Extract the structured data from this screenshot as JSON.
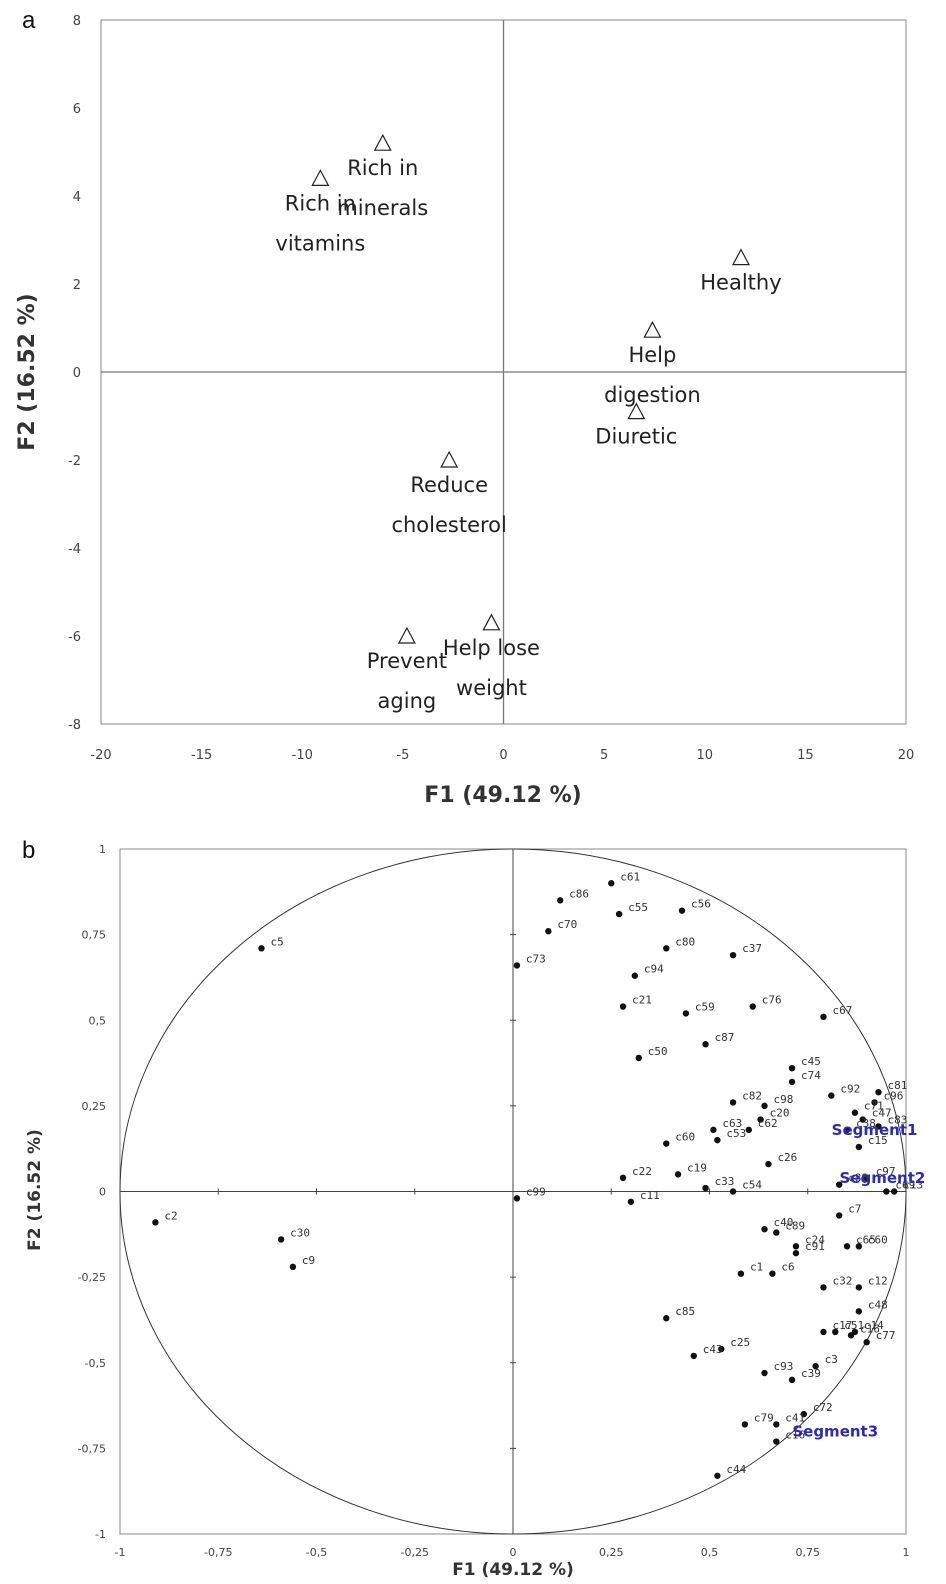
{
  "chart_data": [
    {
      "type": "scatter",
      "panel_label": "a",
      "xlabel": "F1 (49.12 %)",
      "ylabel": "F2 (16.52 %)",
      "xlim": [
        -20,
        20
      ],
      "ylim": [
        -8,
        8
      ],
      "xticks": [
        "-20",
        "-15",
        "-10",
        "-5",
        "0",
        "5",
        "10",
        "15",
        "20"
      ],
      "yticks": [
        "8",
        "6",
        "4",
        "2",
        "0",
        "-2",
        "-4",
        "-6",
        "-8"
      ],
      "marker": "open-triangle",
      "points": [
        {
          "label": [
            "Rich in",
            "vitamins"
          ],
          "x": -9.1,
          "y": 4.4
        },
        {
          "label": [
            "Rich in",
            "minerals"
          ],
          "x": -6.0,
          "y": 5.2
        },
        {
          "label": [
            "Healthy"
          ],
          "x": 11.8,
          "y": 2.6
        },
        {
          "label": [
            "Help",
            "digestion"
          ],
          "x": 7.4,
          "y": 0.95
        },
        {
          "label": [
            "Diuretic"
          ],
          "x": 6.6,
          "y": -0.9
        },
        {
          "label": [
            "Reduce",
            "cholesterol"
          ],
          "x": -2.7,
          "y": -2.0
        },
        {
          "label": [
            "Prevent",
            "aging"
          ],
          "x": -4.8,
          "y": -6.0
        },
        {
          "label": [
            "Help lose",
            "weight"
          ],
          "x": -0.6,
          "y": -5.7
        }
      ]
    },
    {
      "type": "scatter",
      "panel_label": "b",
      "xlabel": "F1 (49.12 %)",
      "ylabel": "F2 (16.52 %)",
      "xlim": [
        -1,
        1
      ],
      "ylim": [
        -1,
        1
      ],
      "xticks": [
        "-1",
        "-0,75",
        "-0,5",
        "-0,25",
        "0",
        "0,25",
        "0,5",
        "0,75",
        "1"
      ],
      "yticks": [
        "1",
        "0,75",
        "0,5",
        "0,25",
        "0",
        "-0,25",
        "-0,5",
        "-0,75",
        "-1"
      ],
      "correlation_circle": true,
      "marker": "filled-circle",
      "points": [
        {
          "label": "c61",
          "x": 0.25,
          "y": 0.9
        },
        {
          "label": "c86",
          "x": 0.12,
          "y": 0.85
        },
        {
          "label": "c55",
          "x": 0.27,
          "y": 0.81
        },
        {
          "label": "c56",
          "x": 0.43,
          "y": 0.82
        },
        {
          "label": "c70",
          "x": 0.09,
          "y": 0.76
        },
        {
          "label": "c5",
          "x": -0.64,
          "y": 0.71
        },
        {
          "label": "c73",
          "x": 0.01,
          "y": 0.66
        },
        {
          "label": "c80",
          "x": 0.39,
          "y": 0.71
        },
        {
          "label": "c37",
          "x": 0.56,
          "y": 0.69
        },
        {
          "label": "c94",
          "x": 0.31,
          "y": 0.63
        },
        {
          "label": "c21",
          "x": 0.28,
          "y": 0.54
        },
        {
          "label": "c59",
          "x": 0.44,
          "y": 0.52
        },
        {
          "label": "c76",
          "x": 0.61,
          "y": 0.54
        },
        {
          "label": "c67",
          "x": 0.79,
          "y": 0.51
        },
        {
          "label": "c87",
          "x": 0.49,
          "y": 0.43
        },
        {
          "label": "c50",
          "x": 0.32,
          "y": 0.39
        },
        {
          "label": "c45",
          "x": 0.71,
          "y": 0.36
        },
        {
          "label": "c74",
          "x": 0.71,
          "y": 0.32
        },
        {
          "label": "c82",
          "x": 0.56,
          "y": 0.26
        },
        {
          "label": "c98",
          "x": 0.64,
          "y": 0.25
        },
        {
          "label": "c20",
          "x": 0.63,
          "y": 0.21
        },
        {
          "label": "c62",
          "x": 0.6,
          "y": 0.18
        },
        {
          "label": "c63",
          "x": 0.51,
          "y": 0.18
        },
        {
          "label": "c53",
          "x": 0.52,
          "y": 0.15
        },
        {
          "label": "c60",
          "x": 0.39,
          "y": 0.14
        },
        {
          "label": "c26",
          "x": 0.65,
          "y": 0.08
        },
        {
          "label": "c22",
          "x": 0.28,
          "y": 0.04
        },
        {
          "label": "c19",
          "x": 0.42,
          "y": 0.05
        },
        {
          "label": "c33",
          "x": 0.49,
          "y": 0.01
        },
        {
          "label": "c54",
          "x": 0.56,
          "y": 0.0
        },
        {
          "label": "c92",
          "x": 0.81,
          "y": 0.28
        },
        {
          "label": "c81",
          "x": 0.93,
          "y": 0.29
        },
        {
          "label": "c96",
          "x": 0.92,
          "y": 0.26
        },
        {
          "label": "c71",
          "x": 0.87,
          "y": 0.23
        },
        {
          "label": "c47",
          "x": 0.89,
          "y": 0.21
        },
        {
          "label": "c83",
          "x": 0.93,
          "y": 0.19
        },
        {
          "label": "c38",
          "x": 0.85,
          "y": 0.18
        },
        {
          "label": "c15",
          "x": 0.88,
          "y": 0.13
        },
        {
          "label": "c97",
          "x": 0.9,
          "y": 0.04
        },
        {
          "label": "c88",
          "x": 0.83,
          "y": 0.02
        },
        {
          "label": "c69",
          "x": 0.95,
          "y": 0.0
        },
        {
          "label": "c13",
          "x": 0.97,
          "y": 0.0
        },
        {
          "label": "c99",
          "x": 0.01,
          "y": -0.02
        },
        {
          "label": "c11",
          "x": 0.3,
          "y": -0.03
        },
        {
          "label": "c7",
          "x": 0.83,
          "y": -0.07
        },
        {
          "label": "c2",
          "x": -0.91,
          "y": -0.09
        },
        {
          "label": "c30",
          "x": -0.59,
          "y": -0.14
        },
        {
          "label": "c9",
          "x": -0.56,
          "y": -0.22
        },
        {
          "label": "c40",
          "x": 0.64,
          "y": -0.11
        },
        {
          "label": "c89",
          "x": 0.67,
          "y": -0.12
        },
        {
          "label": "c24",
          "x": 0.72,
          "y": -0.16
        },
        {
          "label": "c91",
          "x": 0.72,
          "y": -0.18
        },
        {
          "label": "c65",
          "x": 0.85,
          "y": -0.16
        },
        {
          "label": "c60",
          "x": 0.88,
          "y": -0.16
        },
        {
          "label": "c1",
          "x": 0.58,
          "y": -0.24
        },
        {
          "label": "c6",
          "x": 0.66,
          "y": -0.24
        },
        {
          "label": "c32",
          "x": 0.79,
          "y": -0.28
        },
        {
          "label": "c12",
          "x": 0.88,
          "y": -0.28
        },
        {
          "label": "c48",
          "x": 0.88,
          "y": -0.35
        },
        {
          "label": "c85",
          "x": 0.39,
          "y": -0.37
        },
        {
          "label": "c17",
          "x": 0.79,
          "y": -0.41
        },
        {
          "label": "c51",
          "x": 0.82,
          "y": -0.41
        },
        {
          "label": "c16",
          "x": 0.86,
          "y": -0.42
        },
        {
          "label": "c14",
          "x": 0.87,
          "y": -0.41
        },
        {
          "label": "c77",
          "x": 0.9,
          "y": -0.44
        },
        {
          "label": "c25",
          "x": 0.53,
          "y": -0.46
        },
        {
          "label": "c43",
          "x": 0.46,
          "y": -0.48
        },
        {
          "label": "c3",
          "x": 0.77,
          "y": -0.51
        },
        {
          "label": "c93",
          "x": 0.64,
          "y": -0.53
        },
        {
          "label": "c39",
          "x": 0.71,
          "y": -0.55
        },
        {
          "label": "c72",
          "x": 0.74,
          "y": -0.65
        },
        {
          "label": "c79",
          "x": 0.59,
          "y": -0.68
        },
        {
          "label": "c41",
          "x": 0.67,
          "y": -0.68
        },
        {
          "label": "c16",
          "x": 0.67,
          "y": -0.73
        },
        {
          "label": "c44",
          "x": 0.52,
          "y": -0.83
        }
      ],
      "segments": [
        {
          "label": "Segment1",
          "x": 0.92,
          "y": 0.18
        },
        {
          "label": "Segment2",
          "x": 0.94,
          "y": 0.04
        },
        {
          "label": "Segment3",
          "x": 0.82,
          "y": -0.7
        }
      ]
    }
  ]
}
